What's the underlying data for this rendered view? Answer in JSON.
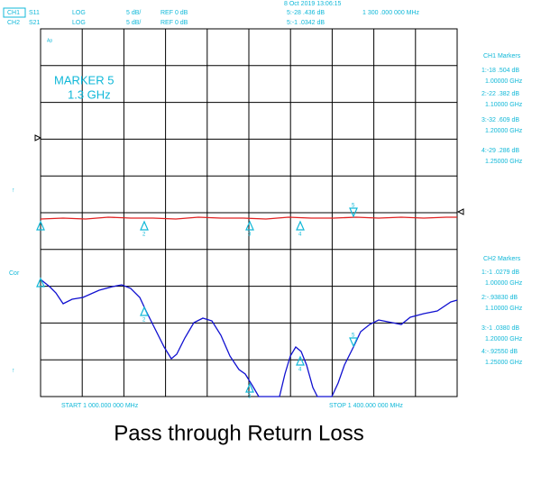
{
  "header": {
    "datetime": "8 Oct 2019  13:06:15",
    "ch1": {
      "channel": "CH1",
      "param": "S11",
      "format": "LOG",
      "scale": "5 dB/",
      "ref": "REF 0 dB",
      "readout": "5:-28 .436 dB",
      "freq": "1 300 .000  000 MHz"
    },
    "ch2": {
      "channel": "CH2",
      "param": "S21",
      "format": "LOG",
      "scale": "5 dB/",
      "ref": "REF 0 dB",
      "readout": "5:-1 .0342 dB"
    }
  },
  "annotation": {
    "marker": "MARKER 5",
    "freq": "1.3 GHz"
  },
  "labels": {
    "ap": "Ap",
    "cor": "Cor"
  },
  "ch1_markers": {
    "title": "CH1 Markers",
    "entries": [
      {
        "value": "1:-18 .504 dB",
        "freq": "1.00000 GHz"
      },
      {
        "value": "2:-22 .382 dB",
        "freq": "1.10000 GHz"
      },
      {
        "value": "3:-32 .609 dB",
        "freq": "1.20000 GHz"
      },
      {
        "value": "4:-29 .286 dB",
        "freq": "1.25000 GHz"
      }
    ]
  },
  "ch2_markers": {
    "title": "CH2 Markers",
    "entries": [
      {
        "value": "1:-1 .0279 dB",
        "freq": "1.00000 GHz"
      },
      {
        "value": "2:-.93830 dB",
        "freq": "1.10000 GHz"
      },
      {
        "value": "3:-1 .0380 dB",
        "freq": "1.20000 GHz"
      },
      {
        "value": "4:-.92550 dB",
        "freq": "1.25000 GHz"
      }
    ]
  },
  "trace_markers": {
    "ch2": [
      "2",
      "3",
      "4",
      "5"
    ],
    "ch1": [
      "2",
      "3",
      "4",
      "5"
    ]
  },
  "footer": {
    "start": "START 1 000.000 000 MHz",
    "stop": "STOP 1 400.000 000 MHz"
  },
  "caption": "Pass through Return Loss"
}
